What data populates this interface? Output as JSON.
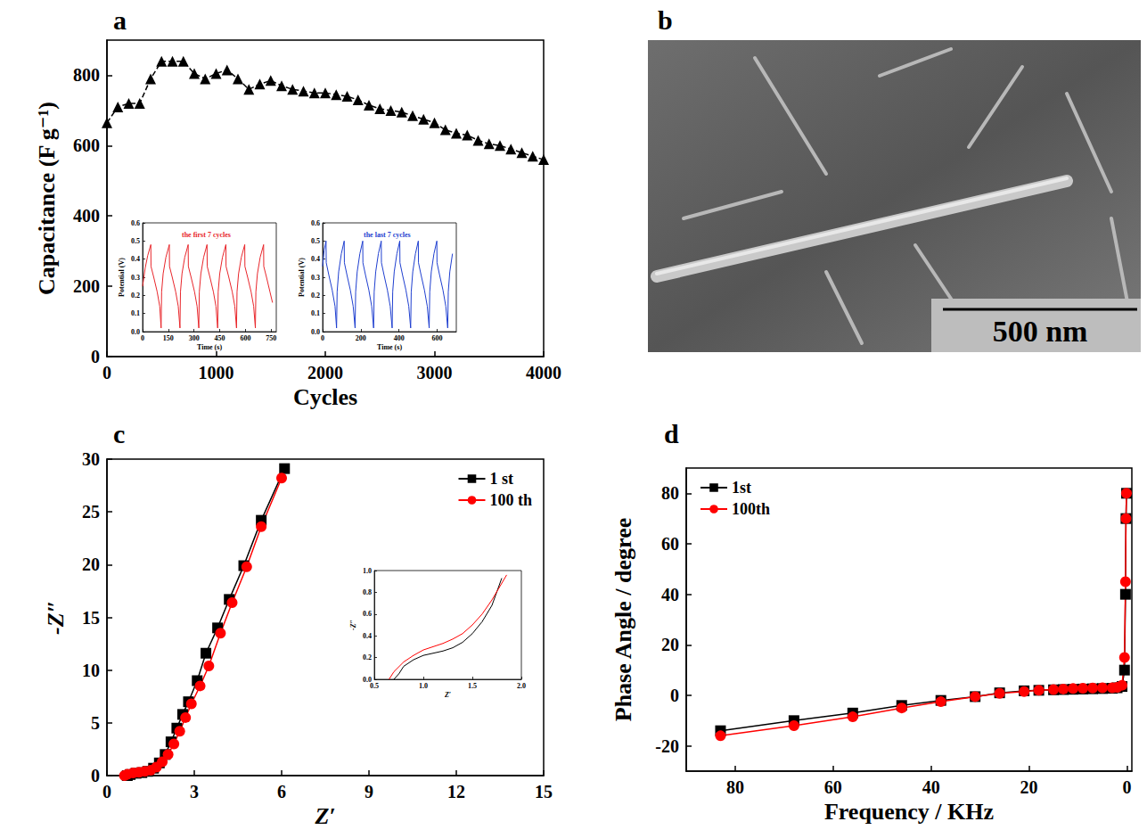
{
  "chart_data": [
    {
      "type": "line",
      "title": "a",
      "x_label": "Cycles",
      "y_label": "Capacitance (F g⁻¹)",
      "xlim": [
        0,
        4000
      ],
      "xticks": [
        0,
        1000,
        2000,
        3000,
        4000
      ],
      "ylim": [
        0,
        900
      ],
      "yticks": [
        0,
        200,
        400,
        600,
        800
      ],
      "series": [
        {
          "color": "#000000",
          "marker": "triangle",
          "line_style": "dashed",
          "x": [
            0,
            100,
            200,
            300,
            400,
            500,
            600,
            700,
            800,
            900,
            1000,
            1100,
            1200,
            1300,
            1400,
            1500,
            1600,
            1700,
            1800,
            1900,
            2000,
            2100,
            2200,
            2300,
            2400,
            2500,
            2600,
            2700,
            2800,
            2900,
            3000,
            3100,
            3200,
            3300,
            3400,
            3500,
            3600,
            3700,
            3800,
            3900,
            4000
          ],
          "values": [
            665,
            710,
            720,
            720,
            790,
            840,
            840,
            840,
            805,
            790,
            805,
            815,
            790,
            760,
            775,
            785,
            770,
            760,
            755,
            750,
            750,
            745,
            740,
            730,
            715,
            705,
            700,
            695,
            685,
            675,
            665,
            645,
            635,
            630,
            615,
            605,
            600,
            590,
            580,
            570,
            560
          ]
        }
      ],
      "insets": [
        {
          "type": "line",
          "title": "the first 7 cycles",
          "x_label": "Time (s)",
          "y_label": "Potential (V)",
          "xlim": [
            0,
            780
          ],
          "xticks": [
            0,
            150,
            300,
            450,
            600,
            750
          ],
          "ylim": [
            0,
            0.6
          ],
          "yticks": [
            {
              "value": 0,
              "label": "0.0"
            },
            0.1,
            0.2,
            0.3,
            0.4,
            0.5,
            0.6
          ],
          "series": [
            {
              "color": "#e8262b",
              "x": [
                0,
                15,
                30,
                48,
                49,
                65,
                85,
                100,
                108,
                111,
                120,
                136,
                156,
                157,
                173,
                193,
                208,
                218,
                221,
                230,
                246,
                266,
                267,
                283,
                303,
                318,
                328,
                331,
                340,
                356,
                376,
                377,
                393,
                413,
                428,
                438,
                441,
                450,
                466,
                486,
                487,
                503,
                523,
                538,
                548,
                551,
                560,
                576,
                596,
                597,
                613,
                633,
                648,
                658,
                661,
                670,
                686,
                706,
                707,
                723,
                743,
                758
              ],
              "values": [
                0.25,
                0.35,
                0.42,
                0.48,
                0.36,
                0.3,
                0.22,
                0.14,
                0.02,
                0.22,
                0.32,
                0.41,
                0.48,
                0.36,
                0.3,
                0.22,
                0.14,
                0.02,
                0.22,
                0.32,
                0.41,
                0.48,
                0.36,
                0.3,
                0.22,
                0.14,
                0.02,
                0.22,
                0.32,
                0.41,
                0.48,
                0.36,
                0.3,
                0.22,
                0.14,
                0.02,
                0.22,
                0.32,
                0.41,
                0.48,
                0.36,
                0.3,
                0.22,
                0.14,
                0.02,
                0.22,
                0.32,
                0.41,
                0.48,
                0.36,
                0.3,
                0.22,
                0.14,
                0.02,
                0.22,
                0.32,
                0.41,
                0.48,
                0.36,
                0.3,
                0.22,
                0.16
              ]
            }
          ]
        },
        {
          "type": "line",
          "title": "the last 7 cycles",
          "x_label": "Time (s)",
          "y_label": "Potential (V)",
          "xlim": [
            0,
            700
          ],
          "xticks": [
            0,
            200,
            400,
            600
          ],
          "ylim": [
            0,
            0.6
          ],
          "yticks": [
            {
              "value": 0,
              "label": "0.0"
            },
            0.1,
            0.2,
            0.3,
            0.4,
            0.5,
            0.6
          ],
          "series": [
            {
              "color": "#1f3fd0",
              "x": [
                0,
                8,
                18,
                19,
                33,
                50,
                65,
                73,
                76,
                84,
                98,
                113,
                114,
                128,
                145,
                160,
                170,
                173,
                181,
                195,
                210,
                211,
                225,
                242,
                257,
                267,
                270,
                278,
                292,
                307,
                308,
                322,
                339,
                354,
                364,
                367,
                375,
                389,
                404,
                405,
                419,
                436,
                451,
                461,
                464,
                472,
                486,
                501,
                502,
                516,
                533,
                548,
                558,
                561,
                569,
                583,
                598,
                599,
                613,
                630,
                645,
                655,
                658,
                666,
                680
              ],
              "values": [
                0.36,
                0.45,
                0.5,
                0.38,
                0.31,
                0.23,
                0.14,
                0.02,
                0.22,
                0.33,
                0.43,
                0.5,
                0.38,
                0.31,
                0.23,
                0.14,
                0.02,
                0.22,
                0.33,
                0.43,
                0.5,
                0.38,
                0.31,
                0.23,
                0.14,
                0.02,
                0.22,
                0.33,
                0.43,
                0.5,
                0.38,
                0.31,
                0.23,
                0.14,
                0.02,
                0.22,
                0.33,
                0.43,
                0.5,
                0.38,
                0.31,
                0.23,
                0.14,
                0.02,
                0.22,
                0.33,
                0.43,
                0.5,
                0.38,
                0.31,
                0.23,
                0.14,
                0.02,
                0.22,
                0.33,
                0.43,
                0.5,
                0.38,
                0.31,
                0.23,
                0.14,
                0.02,
                0.22,
                0.33,
                0.43
              ]
            }
          ]
        }
      ]
    },
    {
      "type": "image",
      "title": "b",
      "annotations": [
        "500 nm"
      ]
    },
    {
      "type": "line",
      "title": "c",
      "x_label": "Z′",
      "y_label": "-Z″",
      "xlim": [
        0,
        15
      ],
      "xticks": [
        0,
        3,
        6,
        9,
        12,
        15
      ],
      "ylim": [
        0,
        30
      ],
      "yticks": [
        0,
        5,
        10,
        15,
        20,
        25,
        30
      ],
      "legend": "upper right",
      "series": [
        {
          "name": "1 st",
          "color": "#000000",
          "marker": "square",
          "x": [
            0.7,
            0.8,
            1.0,
            1.2,
            1.4,
            1.6,
            1.8,
            2.0,
            2.2,
            2.4,
            2.6,
            2.8,
            3.1,
            3.4,
            3.8,
            4.2,
            4.7,
            5.3,
            6.1
          ],
          "values": [
            0,
            0.1,
            0.22,
            0.28,
            0.4,
            0.7,
            1.2,
            2.0,
            3.2,
            4.5,
            5.8,
            7.0,
            9.0,
            11.6,
            14.0,
            16.7,
            19.9,
            24.2,
            29.1
          ]
        },
        {
          "name": "100 th",
          "color": "#ff0000",
          "marker": "circle",
          "x": [
            0.6,
            0.7,
            0.9,
            1.1,
            1.3,
            1.5,
            1.7,
            1.9,
            2.1,
            2.3,
            2.5,
            2.7,
            2.9,
            3.2,
            3.5,
            3.9,
            4.3,
            4.8,
            5.3,
            6.0
          ],
          "values": [
            0,
            0.12,
            0.25,
            0.32,
            0.4,
            0.5,
            0.8,
            1.3,
            2.0,
            3.0,
            4.2,
            5.5,
            6.8,
            8.5,
            10.4,
            13.5,
            16.4,
            19.8,
            23.6,
            28.2
          ]
        }
      ],
      "insets": [
        {
          "type": "line",
          "x_label": "Z′",
          "y_label": "-Z″",
          "xlim": [
            0.5,
            2.0
          ],
          "xticks": [
            0.5,
            {
              "value": 1,
              "label": "1.0"
            },
            1.5,
            {
              "value": 2,
              "label": "2.0"
            }
          ],
          "ylim": [
            0,
            1.0
          ],
          "yticks": [
            {
              "value": 0,
              "label": "0.0"
            },
            0.2,
            0.4,
            0.6,
            0.8,
            {
              "value": 1,
              "label": "1.0"
            }
          ],
          "series": [
            {
              "color": "#000000",
              "x": [
                0.7,
                0.75,
                0.8,
                0.9,
                1.0,
                1.1,
                1.2,
                1.3,
                1.4,
                1.5,
                1.6,
                1.7,
                1.8
              ],
              "values": [
                0,
                0.05,
                0.12,
                0.18,
                0.22,
                0.24,
                0.26,
                0.29,
                0.34,
                0.42,
                0.53,
                0.68,
                0.93
              ]
            },
            {
              "color": "#ff0000",
              "x": [
                0.65,
                0.7,
                0.8,
                0.9,
                1.0,
                1.1,
                1.2,
                1.3,
                1.4,
                1.5,
                1.6,
                1.7,
                1.85
              ],
              "values": [
                0,
                0.07,
                0.16,
                0.22,
                0.27,
                0.3,
                0.33,
                0.37,
                0.42,
                0.5,
                0.6,
                0.73,
                0.96
              ]
            }
          ]
        }
      ]
    },
    {
      "type": "line",
      "title": "d",
      "x_label": "Frequency / KHz",
      "y_label": "Phase Angle / degree",
      "xlim": [
        90,
        -1
      ],
      "xticks": [
        80,
        60,
        40,
        20,
        0
      ],
      "ylim": [
        -30,
        90
      ],
      "yticks": [
        -20,
        0,
        20,
        40,
        60,
        80
      ],
      "legend": "upper left",
      "series": [
        {
          "name": "1st",
          "color": "#000000",
          "marker": "square",
          "x": [
            83,
            68,
            56,
            46,
            38,
            31,
            26,
            21,
            18,
            15,
            13,
            11,
            9,
            7,
            5,
            3,
            2,
            1,
            0.5,
            0.3,
            0.2,
            0.1
          ],
          "values": [
            -14,
            -10,
            -7,
            -4,
            -2,
            -0.5,
            1,
            1.8,
            2,
            2.2,
            2.3,
            2.4,
            2.5,
            2.6,
            2.7,
            2.8,
            3,
            3.5,
            10,
            40,
            70,
            80
          ]
        },
        {
          "name": "100th",
          "color": "#ff0000",
          "marker": "circle",
          "x": [
            83,
            68,
            56,
            46,
            38,
            31,
            26,
            21,
            18,
            15,
            13,
            11,
            9,
            7,
            5,
            3,
            2,
            1,
            0.5,
            0.3,
            0.2,
            0.1
          ],
          "values": [
            -16,
            -12,
            -8.5,
            -5,
            -2.5,
            -0.5,
            0.8,
            1.5,
            2,
            2.3,
            2.5,
            2.7,
            2.8,
            2.9,
            3,
            3,
            3.2,
            4,
            15,
            45,
            70,
            80
          ]
        }
      ]
    }
  ]
}
